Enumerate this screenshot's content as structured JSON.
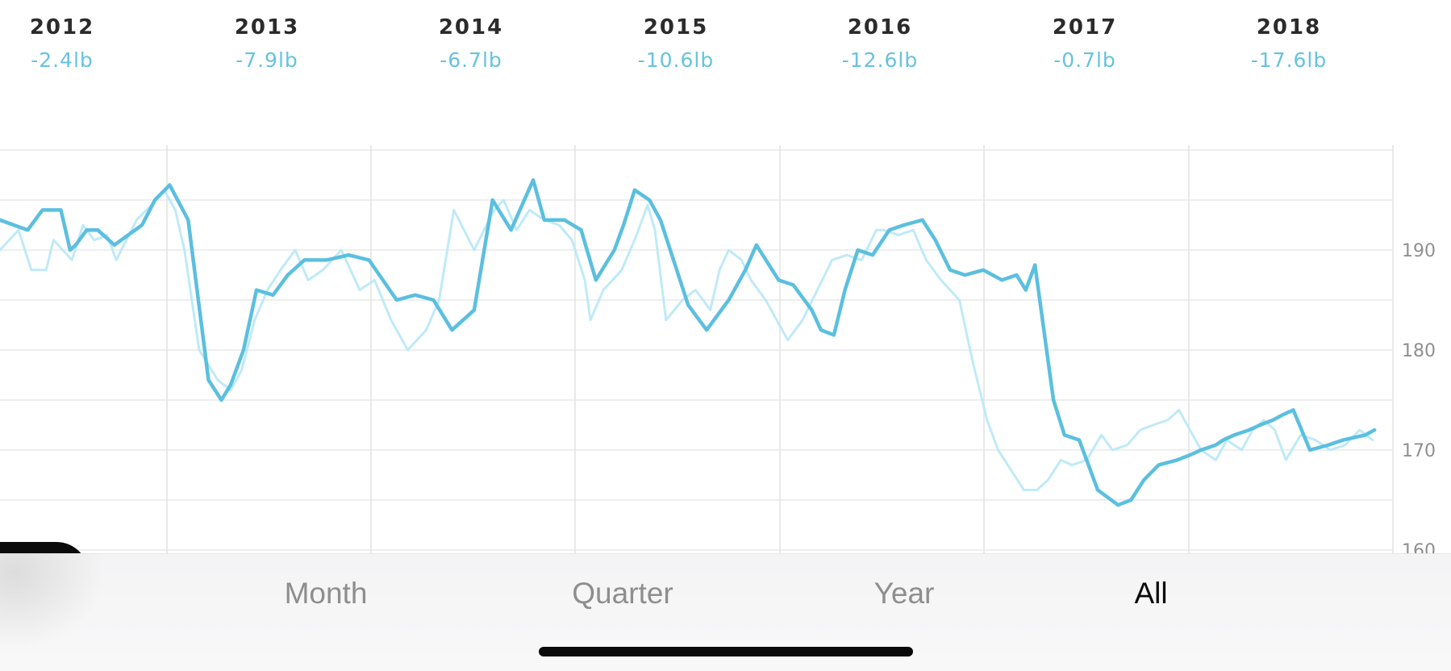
{
  "years": [
    {
      "label": "2012",
      "change": "-2.4lb"
    },
    {
      "label": "2013",
      "change": "-7.9lb"
    },
    {
      "label": "2014",
      "change": "-6.7lb"
    },
    {
      "label": "2015",
      "change": "-10.6lb"
    },
    {
      "label": "2016",
      "change": "-12.6lb"
    },
    {
      "label": "2017",
      "change": "-0.7lb"
    },
    {
      "label": "2018",
      "change": "-17.6lb"
    }
  ],
  "tabs": [
    {
      "label": "Month",
      "active": false
    },
    {
      "label": "Quarter",
      "active": false
    },
    {
      "label": "Year",
      "active": false
    },
    {
      "label": "All",
      "active": true
    }
  ],
  "colors": {
    "trend": "#5bbfdf",
    "raw": "#b8e8f6",
    "accent_text": "#66c3df",
    "grid": "#e8e8e8"
  },
  "chart_data": {
    "type": "line",
    "ylim": [
      160,
      200
    ],
    "xlim": [
      2011.35,
      2018.9
    ],
    "yticks": [
      "160",
      "170",
      "180",
      "190"
    ],
    "ytick_values": [
      160,
      170,
      180,
      190
    ],
    "grid": true,
    "series": [
      {
        "style": "trend",
        "x": [
          2011.35,
          2011.5,
          2011.58,
          2011.68,
          2011.73,
          2011.76,
          2011.82,
          2011.88,
          2011.97,
          2012.12,
          2012.19,
          2012.27,
          2012.37,
          2012.48,
          2012.55,
          2012.6,
          2012.67,
          2012.74,
          2012.83,
          2012.91,
          2013.0,
          2013.12,
          2013.24,
          2013.35,
          2013.5,
          2013.6,
          2013.7,
          2013.8,
          2013.92,
          2014.02,
          2014.12,
          2014.24,
          2014.3,
          2014.41,
          2014.5,
          2014.58,
          2014.68,
          2014.73,
          2014.79,
          2014.87,
          2014.93,
          2015.08,
          2015.18,
          2015.3,
          2015.39,
          2015.45,
          2015.57,
          2015.65,
          2015.75,
          2015.8,
          2015.87,
          2015.93,
          2016.0,
          2016.08,
          2016.17,
          2016.25,
          2016.35,
          2016.42,
          2016.5,
          2016.58,
          2016.68,
          2016.78,
          2016.86,
          2016.91,
          2016.96,
          2017.06,
          2017.12,
          2017.2,
          2017.3,
          2017.41,
          2017.48,
          2017.55,
          2017.63,
          2017.73,
          2017.8,
          2017.86,
          2017.94,
          2017.98,
          2018.04,
          2018.12,
          2018.18,
          2018.25,
          2018.3,
          2018.36,
          2018.45,
          2018.55,
          2018.63,
          2018.75,
          2018.8
        ],
        "y": [
          193,
          192,
          194,
          194,
          190,
          190.5,
          192,
          192,
          190.5,
          192.5,
          195,
          196.5,
          193,
          177,
          175,
          176.5,
          180,
          186,
          185.5,
          187.5,
          189,
          189,
          189.5,
          189,
          185,
          185.5,
          185,
          182,
          184,
          195,
          192,
          197,
          193,
          193,
          192,
          187,
          190,
          192.5,
          196,
          195,
          193,
          184.5,
          182,
          185,
          188,
          190.5,
          187,
          186.5,
          184,
          182,
          181.5,
          186,
          190,
          189.5,
          192,
          192.5,
          193,
          191,
          188,
          187.5,
          188,
          187,
          187.5,
          186,
          188.5,
          175,
          171.5,
          171,
          166,
          164.5,
          165,
          167,
          168.5,
          169,
          169.5,
          170,
          170.5,
          171,
          171.5,
          172,
          172.5,
          173,
          173.5,
          174,
          170,
          170.5,
          171,
          171.5,
          172
        ]
      },
      {
        "style": "raw",
        "x": [
          2011.35,
          2011.45,
          2011.52,
          2011.6,
          2011.64,
          2011.69,
          2011.74,
          2011.8,
          2011.86,
          2011.93,
          2011.98,
          2012.09,
          2012.17,
          2012.24,
          2012.3,
          2012.35,
          2012.43,
          2012.53,
          2012.6,
          2012.66,
          2012.73,
          2012.8,
          2012.87,
          2012.95,
          2013.02,
          2013.1,
          2013.2,
          2013.3,
          2013.38,
          2013.47,
          2013.56,
          2013.66,
          2013.73,
          2013.81,
          2013.92,
          2014.0,
          2014.03,
          2014.08,
          2014.15,
          2014.22,
          2014.3,
          2014.38,
          2014.45,
          2014.52,
          2014.55,
          2014.62,
          2014.72,
          2014.8,
          2014.86,
          2014.9,
          2014.96,
          2015.05,
          2015.12,
          2015.2,
          2015.25,
          2015.3,
          2015.37,
          2015.42,
          2015.5,
          2015.56,
          2015.62,
          2015.7,
          2015.78,
          2015.86,
          2015.94,
          2016.02,
          2016.1,
          2016.14,
          2016.22,
          2016.3,
          2016.37,
          2016.45,
          2016.55,
          2016.62,
          2016.7,
          2016.76,
          2016.83,
          2016.9,
          2016.97,
          2017.03,
          2017.1,
          2017.16,
          2017.24,
          2017.32,
          2017.38,
          2017.46,
          2017.53,
          2017.6,
          2017.68,
          2017.74,
          2017.8,
          2017.86,
          2017.94,
          2018.0,
          2018.08,
          2018.14,
          2018.2,
          2018.26,
          2018.32,
          2018.4,
          2018.48,
          2018.56,
          2018.64,
          2018.72,
          2018.79
        ],
        "y": [
          190,
          192,
          188,
          188,
          191,
          190,
          189,
          192.5,
          191,
          191.5,
          189,
          193,
          194.5,
          196,
          194,
          190,
          180,
          177,
          176,
          178,
          183,
          186,
          188,
          190,
          187,
          188,
          190,
          186,
          187,
          183,
          180,
          182,
          185,
          194,
          190,
          193,
          194,
          195,
          192,
          194,
          193,
          192.5,
          191,
          187,
          183,
          186,
          188,
          191.5,
          194.5,
          192,
          183,
          185,
          186,
          184,
          188,
          190,
          189,
          187,
          185,
          183,
          181,
          183,
          186,
          189,
          189.5,
          189,
          192,
          192,
          191.5,
          192,
          189,
          187,
          185,
          179,
          173,
          170,
          168,
          166,
          166,
          167,
          169,
          168.5,
          169,
          171.5,
          170,
          170.5,
          172,
          172.5,
          173,
          174,
          172,
          170,
          169,
          171,
          170,
          172,
          173,
          172,
          169,
          171.5,
          171,
          170,
          170.5,
          172,
          171
        ]
      }
    ]
  }
}
